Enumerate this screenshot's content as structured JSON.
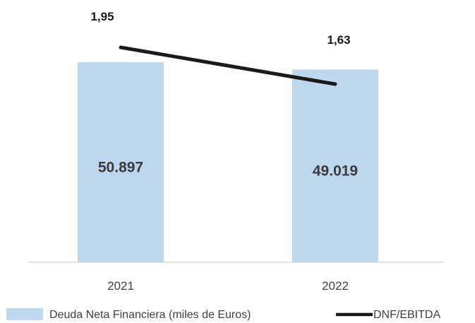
{
  "chart_data": {
    "type": "bar",
    "categories": [
      "2021",
      "2022"
    ],
    "series": [
      {
        "name": "Deuda Neta Financiera (miles de Euros)",
        "type": "bar",
        "axis": "left",
        "values": [
          50897,
          49019
        ],
        "labels": [
          "50.897",
          "49.019"
        ],
        "color": "#bdd7ee"
      },
      {
        "name": "DNF/EBITDA",
        "type": "line",
        "axis": "right",
        "values": [
          1.95,
          1.63
        ],
        "labels": [
          "1,95",
          "1,63"
        ],
        "color": "#1a1a1a"
      }
    ],
    "legend_position": "bottom",
    "grid": false
  }
}
